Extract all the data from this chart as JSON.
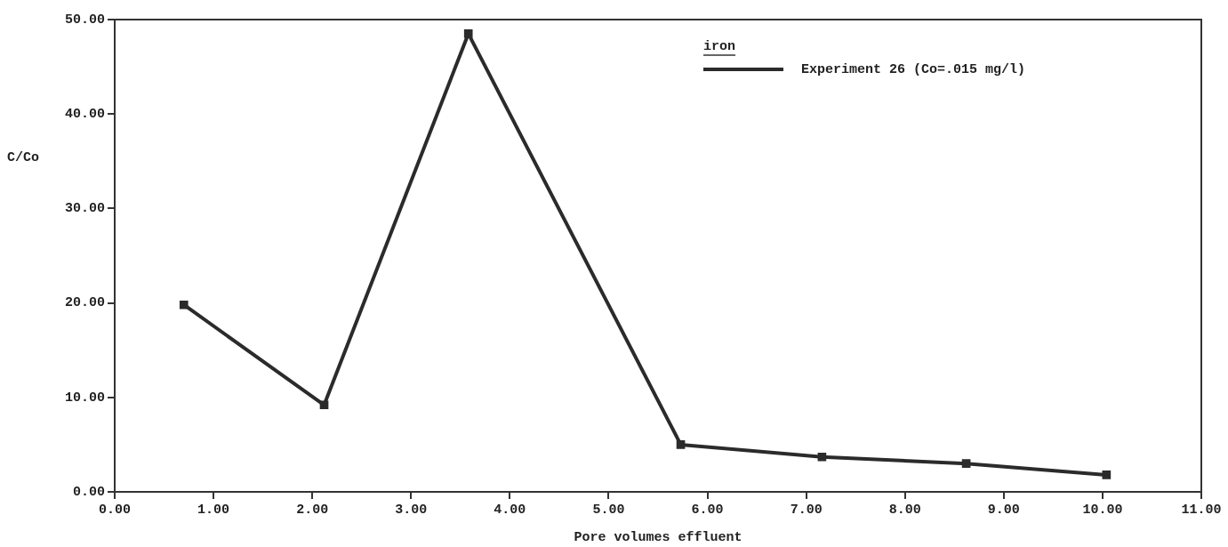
{
  "chart_data": {
    "type": "line",
    "xlabel": "Pore volumes effluent",
    "ylabel": "C/Co",
    "legend_title": "iron",
    "x": [
      0.7,
      2.12,
      3.58,
      5.73,
      7.16,
      8.62,
      10.04
    ],
    "series": [
      {
        "name": "Experiment 26 (Co=.015 mg/l)",
        "color": "#2b2b2b",
        "values": [
          19.8,
          9.2,
          48.5,
          5.0,
          3.7,
          3.0,
          1.8
        ]
      }
    ],
    "xlim": [
      0,
      11
    ],
    "xticks": [
      {
        "value": 0,
        "label": "0.00"
      },
      {
        "value": 1,
        "label": "1.00"
      },
      {
        "value": 2,
        "label": "2.00"
      },
      {
        "value": 3,
        "label": "3.00"
      },
      {
        "value": 4,
        "label": "4.00"
      },
      {
        "value": 5,
        "label": "5.00"
      },
      {
        "value": 6,
        "label": "6.00"
      },
      {
        "value": 7,
        "label": "7.00"
      },
      {
        "value": 8,
        "label": "8.00"
      },
      {
        "value": 9,
        "label": "9.00"
      },
      {
        "value": 10,
        "label": "10.00"
      },
      {
        "value": 11,
        "label": "11.00"
      }
    ],
    "ylim": [
      0,
      50
    ],
    "yticks": [
      {
        "value": 0,
        "label": "0.00"
      },
      {
        "value": 10,
        "label": "10.00"
      },
      {
        "value": 20,
        "label": "20.00"
      },
      {
        "value": 30,
        "label": "30.00"
      },
      {
        "value": 40,
        "label": "40.00"
      },
      {
        "value": 50,
        "label": "50.00"
      }
    ],
    "grid": false,
    "legend": "top right",
    "marker": "square",
    "line_style": "solid"
  }
}
